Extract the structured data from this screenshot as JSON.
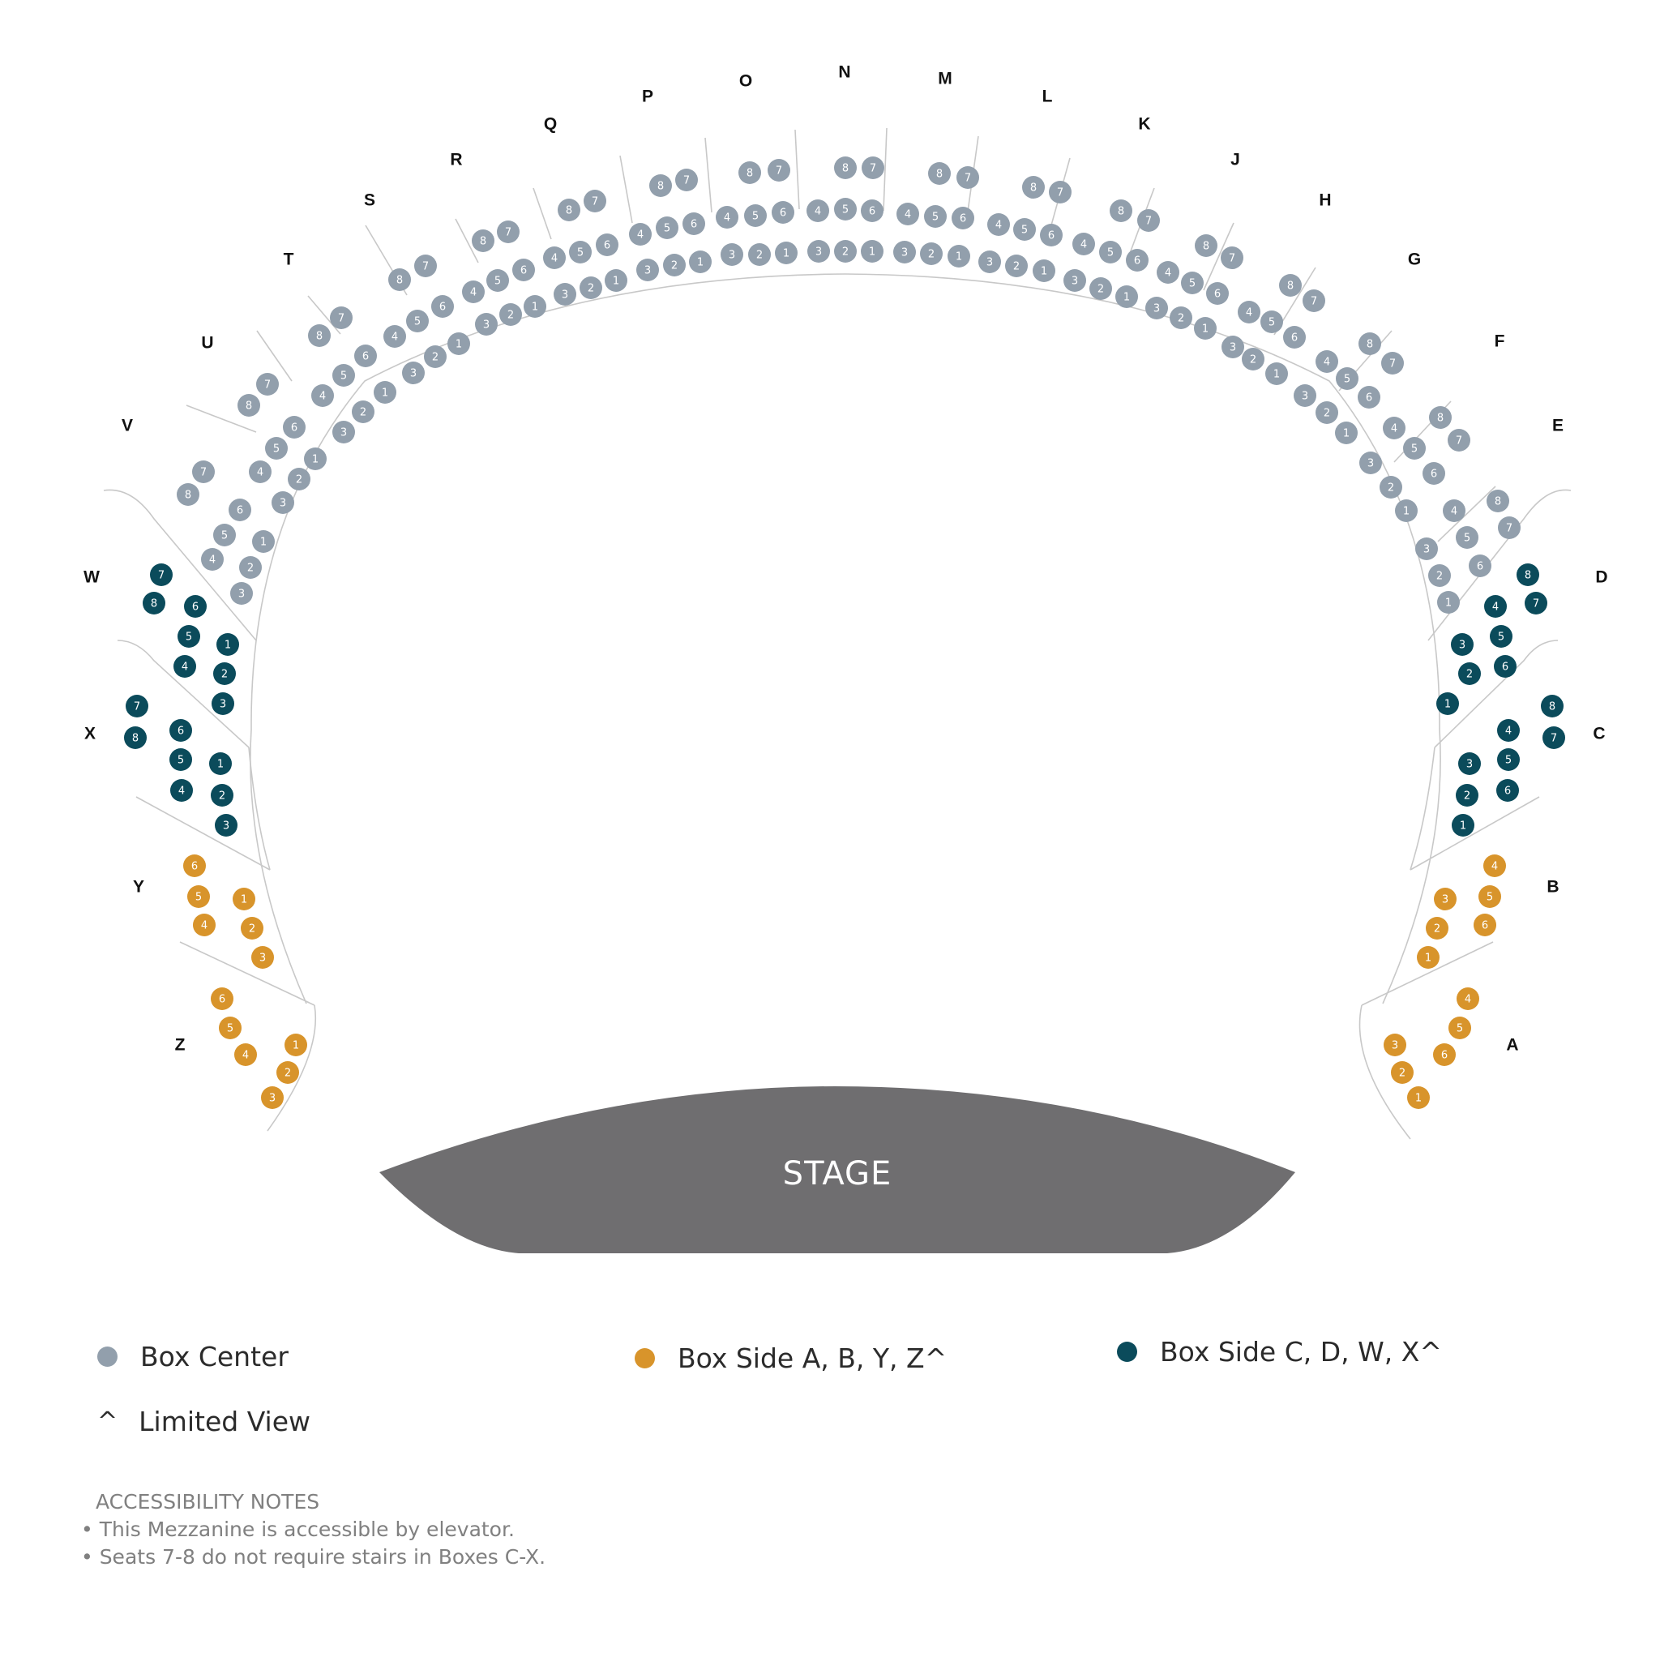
{
  "colors": {
    "box_center": "#929fac",
    "box_side_ab": "#d8942b",
    "box_side_cd": "#0b4b5b",
    "stage": "#6f6e70",
    "divider": "#c8c8c8"
  },
  "stage": {
    "label": "STAGE"
  },
  "legend": {
    "box_center": "Box Center",
    "box_side_ab": "Box Side A, B, Y, Z^",
    "box_side_cd": "Box Side C, D, W, X^",
    "limited_view_symbol": "^",
    "limited_view": "Limited View"
  },
  "notes": {
    "title": "ACCESSIBILITY NOTES",
    "items": [
      "• This Mezzanine is accessible by elevator.",
      "• Seats 7-8 do not require stairs in Boxes C-X."
    ]
  },
  "boxes": [
    {
      "name": "V",
      "category": "center",
      "seats": [
        "1",
        "2",
        "3",
        "4",
        "5",
        "6",
        "7",
        "8"
      ]
    },
    {
      "name": "U",
      "category": "center",
      "seats": [
        "1",
        "2",
        "3",
        "4",
        "5",
        "6",
        "7",
        "8"
      ]
    },
    {
      "name": "T",
      "category": "center",
      "seats": [
        "1",
        "2",
        "3",
        "4",
        "5",
        "6",
        "7",
        "8"
      ]
    },
    {
      "name": "S",
      "category": "center",
      "seats": [
        "1",
        "2",
        "3",
        "4",
        "5",
        "6",
        "7",
        "8"
      ]
    },
    {
      "name": "R",
      "category": "center",
      "seats": [
        "1",
        "2",
        "3",
        "4",
        "5",
        "6",
        "7",
        "8"
      ]
    },
    {
      "name": "Q",
      "category": "center",
      "seats": [
        "1",
        "2",
        "3",
        "4",
        "5",
        "6",
        "7",
        "8"
      ]
    },
    {
      "name": "P",
      "category": "center",
      "seats": [
        "1",
        "2",
        "3",
        "4",
        "5",
        "6",
        "7",
        "8"
      ]
    },
    {
      "name": "O",
      "category": "center",
      "seats": [
        "1",
        "2",
        "3",
        "4",
        "5",
        "6",
        "7",
        "8"
      ]
    },
    {
      "name": "N",
      "category": "center",
      "seats": [
        "1",
        "2",
        "3",
        "4",
        "5",
        "6",
        "7",
        "8"
      ]
    },
    {
      "name": "M",
      "category": "center",
      "seats": [
        "1",
        "2",
        "3",
        "4",
        "5",
        "6",
        "7",
        "8"
      ]
    },
    {
      "name": "L",
      "category": "center",
      "seats": [
        "1",
        "2",
        "3",
        "4",
        "5",
        "6",
        "7",
        "8"
      ]
    },
    {
      "name": "K",
      "category": "center",
      "seats": [
        "1",
        "2",
        "3",
        "4",
        "5",
        "6",
        "7",
        "8"
      ]
    },
    {
      "name": "J",
      "category": "center",
      "seats": [
        "1",
        "2",
        "3",
        "4",
        "5",
        "6",
        "7",
        "8"
      ]
    },
    {
      "name": "H",
      "category": "center",
      "seats": [
        "1",
        "2",
        "3",
        "4",
        "5",
        "6",
        "7",
        "8"
      ]
    },
    {
      "name": "G",
      "category": "center",
      "seats": [
        "1",
        "2",
        "3",
        "4",
        "5",
        "6",
        "7",
        "8"
      ]
    },
    {
      "name": "F",
      "category": "center",
      "seats": [
        "1",
        "2",
        "3",
        "4",
        "5",
        "6",
        "7",
        "8"
      ]
    },
    {
      "name": "E",
      "category": "center",
      "seats": [
        "1",
        "2",
        "3",
        "4",
        "5",
        "6",
        "7",
        "8"
      ]
    },
    {
      "name": "W",
      "category": "side_cd",
      "seats": [
        "1",
        "2",
        "3",
        "4",
        "5",
        "6",
        "7",
        "8"
      ]
    },
    {
      "name": "X",
      "category": "side_cd",
      "seats": [
        "1",
        "2",
        "3",
        "4",
        "5",
        "6",
        "7",
        "8"
      ]
    },
    {
      "name": "D",
      "category": "side_cd",
      "seats": [
        "1",
        "2",
        "3",
        "4",
        "5",
        "6",
        "7",
        "8"
      ]
    },
    {
      "name": "C",
      "category": "side_cd",
      "seats": [
        "1",
        "2",
        "3",
        "4",
        "5",
        "6",
        "7",
        "8"
      ]
    },
    {
      "name": "Y",
      "category": "side_ab",
      "seats": [
        "1",
        "2",
        "3",
        "4",
        "5",
        "6"
      ]
    },
    {
      "name": "Z",
      "category": "side_ab",
      "seats": [
        "1",
        "2",
        "3",
        "4",
        "5",
        "6"
      ]
    },
    {
      "name": "B",
      "category": "side_ab",
      "seats": [
        "1",
        "2",
        "3",
        "4",
        "5",
        "6"
      ]
    },
    {
      "name": "A",
      "category": "side_ab",
      "seats": [
        "1",
        "2",
        "3",
        "4",
        "5",
        "6"
      ]
    }
  ]
}
